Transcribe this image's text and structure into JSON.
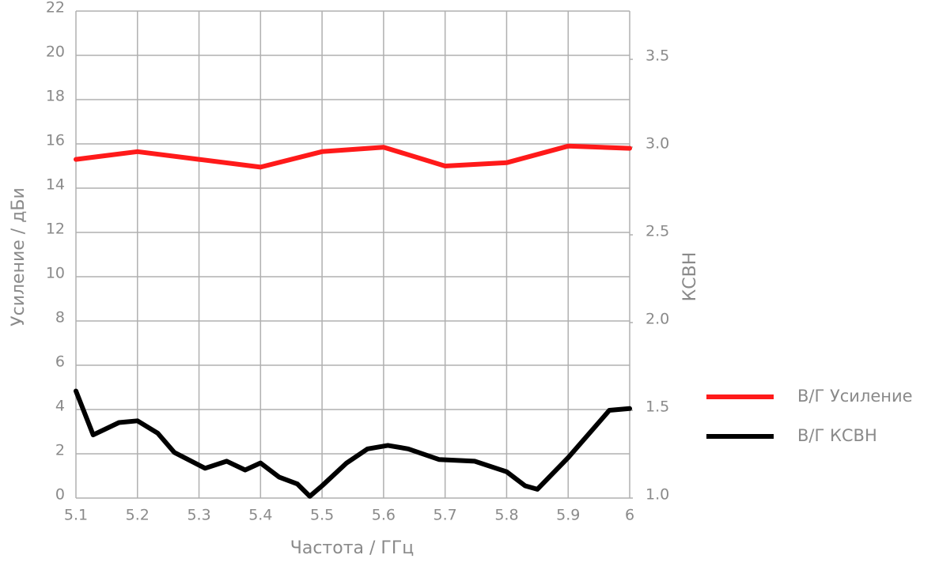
{
  "chart_data": {
    "type": "line",
    "x_label": "Частота / ГГц",
    "y_label": "Усиление / дБи",
    "y2_label": "КСВН",
    "xlim": [
      5.1,
      6
    ],
    "xticks": [
      5.1,
      5.2,
      5.3,
      5.4,
      5.5,
      5.6,
      5.7,
      5.8,
      5.9,
      6
    ],
    "ylim": [
      0,
      22
    ],
    "yticks": [
      0,
      2,
      4,
      6,
      8,
      10,
      12,
      14,
      16,
      18,
      20,
      22
    ],
    "y2lim": [
      1.0,
      3.775
    ],
    "y2ticks": [
      {
        "value": 1.0,
        "label": "1.0"
      },
      1.5,
      {
        "value": 2.0,
        "label": "2.0"
      },
      2.5,
      {
        "value": 3.0,
        "label": "3.0"
      },
      3.5
    ],
    "grid": true,
    "legend": "right",
    "series": [
      {
        "name": "В/Г Усиление",
        "color": "#ff1a1a",
        "x": [
          5.1,
          5.2,
          5.3,
          5.4,
          5.5,
          5.6,
          5.7,
          5.8,
          5.9,
          6
        ],
        "values": [
          15.3,
          15.65,
          15.3,
          14.95,
          15.65,
          15.85,
          15.0,
          15.15,
          15.9,
          15.8
        ]
      },
      {
        "name": "В/Г КСВН",
        "color": "#000000",
        "axis": "y2",
        "x": [
          5.1,
          5.128,
          5.17,
          5.2,
          5.233,
          5.26,
          5.31,
          5.345,
          5.375,
          5.4,
          5.43,
          5.46,
          5.48,
          5.5,
          5.54,
          5.574,
          5.607,
          5.64,
          5.69,
          5.748,
          5.8,
          5.83,
          5.85,
          5.9,
          5.967,
          6
        ],
        "values": [
          1.61,
          1.36,
          1.43,
          1.44,
          1.37,
          1.26,
          1.17,
          1.21,
          1.16,
          1.2,
          1.12,
          1.08,
          1.01,
          1.07,
          1.2,
          1.28,
          1.3,
          1.28,
          1.22,
          1.21,
          1.15,
          1.07,
          1.05,
          1.23,
          1.5,
          1.51
        ]
      }
    ]
  }
}
